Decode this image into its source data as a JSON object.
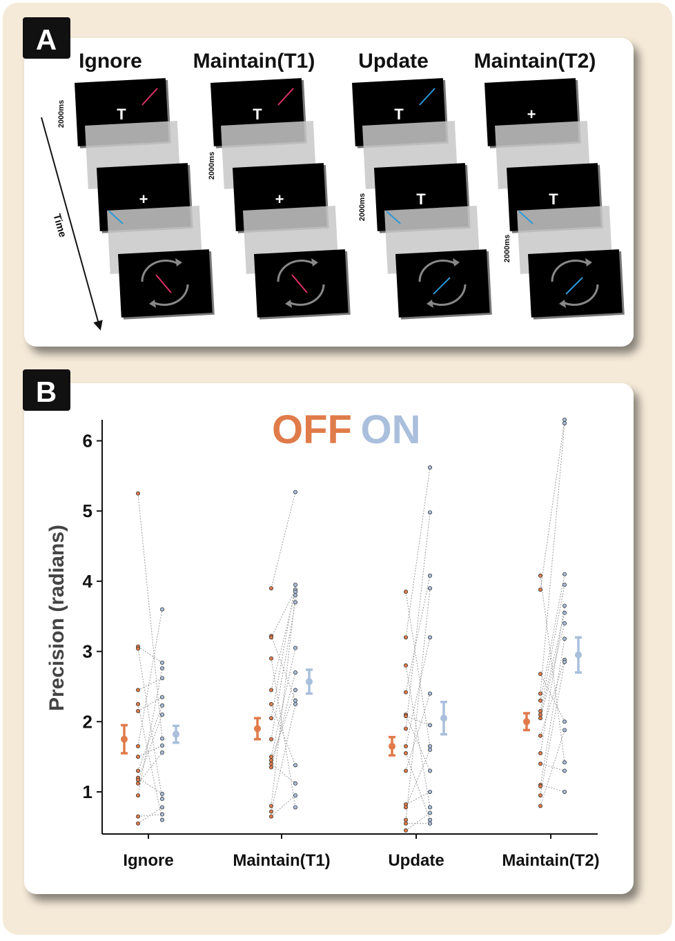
{
  "panel_a": {
    "label": "A",
    "time_label": "Time",
    "conditions": [
      {
        "title": "Ignore",
        "cards": [
          "T",
          "+"
        ],
        "duration": "2000ms"
      },
      {
        "title": "Maintain(T1)",
        "cards": [
          "T",
          "+"
        ],
        "duration": "2000ms"
      },
      {
        "title": "Update",
        "cards": [
          "T",
          "T"
        ],
        "duration": "2000ms"
      },
      {
        "title": "Maintain(T2)",
        "cards": [
          "+",
          "T"
        ],
        "duration": "2000ms"
      }
    ]
  },
  "panel_b": {
    "label": "B"
  },
  "chart_data": {
    "type": "paired-strip",
    "y_label": "Precision (radians)",
    "categories": [
      "Ignore",
      "Maintain(T1)",
      "Update",
      "Maintain(T2)"
    ],
    "ylim": [
      0.4,
      6.3
    ],
    "yticks": [
      1,
      2,
      3,
      4,
      5,
      6
    ],
    "series": [
      {
        "name": "OFF",
        "color": "#e07b4a",
        "values": [
          1.75,
          1.9,
          1.65,
          2.0
        ],
        "errors": [
          0.2,
          0.15,
          0.13,
          0.12
        ],
        "points": [
          [
            5.25,
            3.07,
            3.04,
            2.45,
            2.25,
            2.15,
            1.65,
            1.5,
            1.3,
            1.2,
            1.17,
            1.12,
            0.95,
            0.65,
            0.55
          ],
          [
            3.9,
            3.22,
            3.2,
            2.9,
            2.45,
            2.25,
            2.05,
            1.75,
            1.5,
            1.45,
            1.4,
            1.35,
            0.8,
            0.72,
            0.65
          ],
          [
            3.85,
            3.2,
            2.8,
            2.42,
            2.1,
            2.08,
            1.9,
            1.65,
            1.55,
            1.3,
            0.82,
            0.78,
            0.6,
            0.55,
            0.45
          ],
          [
            4.08,
            3.88,
            2.68,
            2.4,
            2.3,
            2.15,
            2.1,
            2.05,
            1.8,
            1.55,
            1.4,
            1.1,
            1.08,
            0.95,
            0.8
          ]
        ]
      },
      {
        "name": "ON",
        "color": "#a9bfdc",
        "values": [
          1.82,
          2.57,
          2.05,
          2.95
        ],
        "errors": [
          0.12,
          0.17,
          0.23,
          0.25
        ],
        "points": [
          [
            1.76,
            2.84,
            0.9,
            2.62,
            0.6,
            2.35,
            3.6,
            1.66,
            2.23,
            0.97,
            2.1,
            1.56,
            2.76,
            0.68,
            0.78
          ],
          [
            5.27,
            2.3,
            3.88,
            0.78,
            3.85,
            1.38,
            3.95,
            3.7,
            3.05,
            2.45,
            1.12,
            2.7,
            3.8,
            2.25,
            0.95
          ],
          [
            1.65,
            5.62,
            0.78,
            4.08,
            1.3,
            1.95,
            4.98,
            3.2,
            0.6,
            2.4,
            1.0,
            1.6,
            3.9,
            0.55,
            0.7
          ],
          [
            1.42,
            6.3,
            2.0,
            6.25,
            4.1,
            3.95,
            3.55,
            3.4,
            2.88,
            3.65,
            1.3,
            1.0,
            3.18,
            2.85,
            1.88
          ]
        ]
      }
    ]
  }
}
